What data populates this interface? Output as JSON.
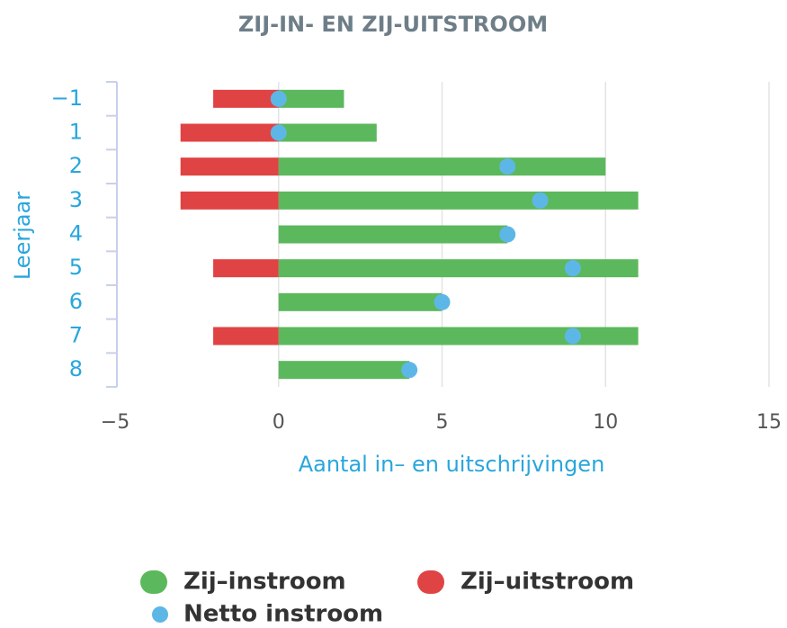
{
  "chart_data": {
    "type": "bar",
    "title": "ZIJ-IN- EN ZIJ-UITSTROOM",
    "x_label": "Aantal in– en uitschrijvingen",
    "y_label": "Leerjaar",
    "categories": [
      "−1",
      "1",
      "2",
      "3",
      "4",
      "5",
      "6",
      "7",
      "8"
    ],
    "series": [
      {
        "name": "Zij–instroom",
        "color": "#5cb85c",
        "values": [
          2,
          3,
          10,
          11,
          7,
          11,
          5,
          11,
          4
        ]
      },
      {
        "name": "Zij–uitstroom",
        "color": "#e04343",
        "values": [
          -2,
          -3,
          -3,
          -3,
          0,
          -2,
          0,
          -2,
          0
        ]
      },
      {
        "name": "Netto instroom",
        "color": "#5db7e6",
        "type": "scatter",
        "values": [
          0,
          0,
          7,
          8,
          7,
          9,
          5,
          9,
          4
        ]
      }
    ],
    "xlim": [
      -5,
      15
    ],
    "xticks": [
      {
        "value": -5,
        "label": "−5"
      },
      0,
      5,
      10,
      15
    ],
    "grid": true,
    "legend": "bottom"
  }
}
